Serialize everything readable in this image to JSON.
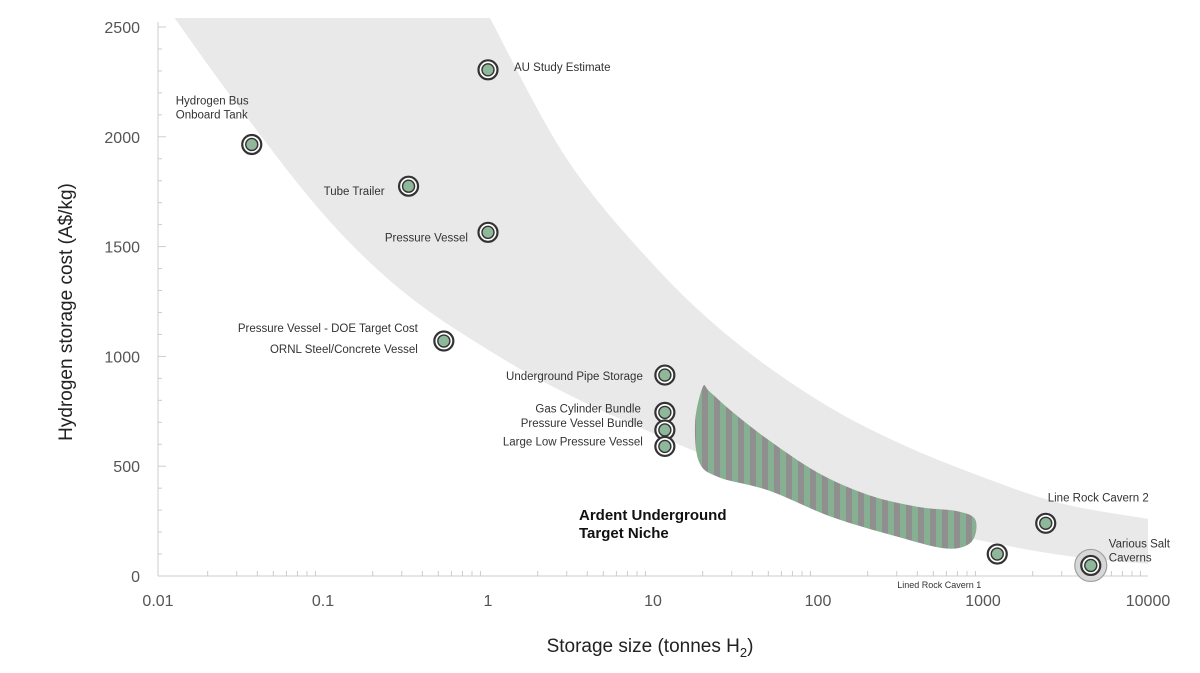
{
  "chart_data": {
    "type": "scatter",
    "title": "",
    "xlabel": "Storage size (tonnes H",
    "xlabel_sub": "2",
    "xlabel_end": ")",
    "ylabel": "Hydrogen storage cost (A$/kg)",
    "x_scale": "log",
    "xlim": [
      0.01,
      10000
    ],
    "ylim": [
      0,
      2500
    ],
    "x_ticks": [
      {
        "value": 0.01,
        "label": "0.01"
      },
      {
        "value": 0.1,
        "label": "0.1"
      },
      {
        "value": 1,
        "label": "1"
      },
      {
        "value": 10,
        "label": "10"
      },
      {
        "value": 100,
        "label": "100"
      },
      {
        "value": 1000,
        "label": "1000"
      },
      {
        "value": 10000,
        "label": "10000"
      }
    ],
    "y_ticks": [
      {
        "value": 0,
        "label": "0"
      },
      {
        "value": 500,
        "label": "500"
      },
      {
        "value": 1000,
        "label": "1000"
      },
      {
        "value": 1500,
        "label": "1500"
      },
      {
        "value": 2000,
        "label": "2000"
      },
      {
        "value": 2500,
        "label": "2500"
      }
    ],
    "grid": false,
    "colors": {
      "band": "#e9e9e9",
      "marker_fill": "#8fb89b",
      "marker_ring": "#333333",
      "stripe_green": "#87b092",
      "stripe_gray": "#8f8f8f",
      "axis": "#cccccc"
    },
    "points": [
      {
        "name": "Hydrogen Bus\nOnboard Tank",
        "x": 0.037,
        "y": 1965
      },
      {
        "name": "AU Study Estimate",
        "x": 1.0,
        "y": 2305
      },
      {
        "name": "Tube Trailer",
        "x": 0.33,
        "y": 1775
      },
      {
        "name": "Pressure Vessel",
        "x": 1.0,
        "y": 1565
      },
      {
        "name": "Pressure Vessel - DOE Target Cost\nORNL Steel/Concrete Vessel",
        "x": 0.54,
        "y": 1070
      },
      {
        "name": "Underground Pipe Storage",
        "x": 11.8,
        "y": 915
      },
      {
        "name": "Gas Cylinder Bundle",
        "x": 11.8,
        "y": 745
      },
      {
        "name": "Pressure Vessel Bundle",
        "x": 11.8,
        "y": 665
      },
      {
        "name": "Large Low Pressure Vessel",
        "x": 11.8,
        "y": 590
      },
      {
        "name": "Line Rock Cavern 2",
        "x": 2400,
        "y": 240
      },
      {
        "name": "Lined Rock Cavern 1",
        "x": 1220,
        "y": 100
      },
      {
        "name": "Various Salt\nCaverns",
        "x": 4500,
        "y": 48,
        "halo": true
      }
    ],
    "niche_region": {
      "label": "Ardent Underground\nTarget Niche",
      "outline": [
        [
          20,
          860
        ],
        [
          22,
          840
        ],
        [
          30,
          750
        ],
        [
          50,
          620
        ],
        [
          100,
          470
        ],
        [
          200,
          370
        ],
        [
          400,
          315
        ],
        [
          700,
          295
        ],
        [
          900,
          255
        ],
        [
          850,
          155
        ],
        [
          600,
          125
        ],
        [
          300,
          180
        ],
        [
          120,
          270
        ],
        [
          50,
          390
        ],
        [
          25,
          450
        ],
        [
          19,
          520
        ],
        [
          18,
          700
        ]
      ]
    },
    "band_region": {
      "outline": [
        [
          0.0125,
          2545
        ],
        [
          0.03,
          2150
        ],
        [
          0.1,
          1650
        ],
        [
          0.3,
          1300
        ],
        [
          1,
          1030
        ],
        [
          3,
          830
        ],
        [
          10,
          650
        ],
        [
          30,
          500
        ],
        [
          100,
          360
        ],
        [
          300,
          250
        ],
        [
          1000,
          160
        ],
        [
          3000,
          95
        ],
        [
          10000,
          55
        ],
        [
          10000,
          260
        ],
        [
          3000,
          330
        ],
        [
          1000,
          450
        ],
        [
          300,
          610
        ],
        [
          100,
          800
        ],
        [
          30,
          1080
        ],
        [
          10,
          1420
        ],
        [
          3,
          1900
        ],
        [
          1.02,
          2545
        ]
      ]
    }
  }
}
